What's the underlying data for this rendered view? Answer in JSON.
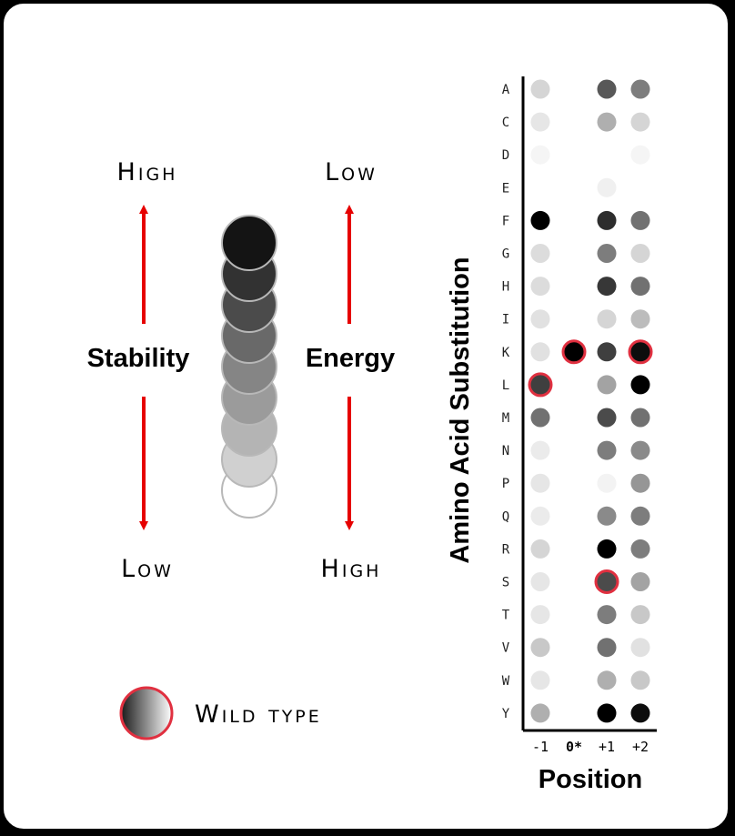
{
  "legend": {
    "stability": {
      "top": "High",
      "label": "Stability",
      "bottom": "Low"
    },
    "energy": {
      "top": "Low",
      "label": "Energy",
      "bottom": "High"
    },
    "scale_levels": [
      0.92,
      0.8,
      0.7,
      0.58,
      0.47,
      0.38,
      0.28,
      0.17,
      0.0
    ],
    "wild_type_label": "Wild type"
  },
  "colors": {
    "arrow": "#e60000",
    "wild_type_ring": "#e03040"
  },
  "chart_data": {
    "type": "dot-matrix",
    "ylabel": "Amino Acid Substitution",
    "xlabel": "Position",
    "columns": [
      "-1",
      "0*",
      "+1",
      "+2"
    ],
    "rows": [
      "A",
      "C",
      "D",
      "E",
      "F",
      "G",
      "H",
      "I",
      "K",
      "L",
      "M",
      "N",
      "P",
      "Q",
      "R",
      "S",
      "T",
      "V",
      "W",
      "Y"
    ],
    "intensity": [
      [
        0.15,
        null,
        0.65,
        0.5
      ],
      [
        0.08,
        null,
        0.3,
        0.15
      ],
      [
        0.02,
        null,
        null,
        0.02
      ],
      [
        null,
        null,
        0.04,
        null
      ],
      [
        1.0,
        null,
        0.82,
        0.55
      ],
      [
        0.12,
        null,
        0.5,
        0.15
      ],
      [
        0.12,
        null,
        0.78,
        0.55
      ],
      [
        0.1,
        null,
        0.15,
        0.25
      ],
      [
        0.1,
        1.0,
        0.75,
        0.95
      ],
      [
        0.75,
        null,
        0.35,
        1.0
      ],
      [
        0.55,
        null,
        0.7,
        0.55
      ],
      [
        0.06,
        null,
        0.5,
        0.45
      ],
      [
        0.08,
        null,
        0.03,
        0.4
      ],
      [
        0.06,
        null,
        0.45,
        0.5
      ],
      [
        0.15,
        null,
        1.0,
        0.5
      ],
      [
        0.08,
        null,
        0.7,
        0.35
      ],
      [
        0.08,
        null,
        0.5,
        0.2
      ],
      [
        0.2,
        null,
        0.55,
        0.1
      ],
      [
        0.08,
        null,
        0.3,
        0.2
      ],
      [
        0.3,
        null,
        1.0,
        0.95
      ]
    ],
    "wild_type": [
      {
        "row": "L",
        "column": "-1"
      },
      {
        "row": "K",
        "column": "0*"
      },
      {
        "row": "S",
        "column": "+1"
      },
      {
        "row": "K",
        "column": "+2"
      }
    ]
  }
}
